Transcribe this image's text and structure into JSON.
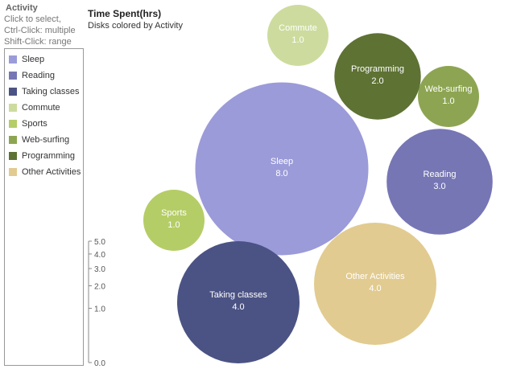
{
  "legend": {
    "title": "Activity",
    "hints": [
      "Click to select,",
      "Ctrl-Click: multiple",
      "Shift-Click: range"
    ]
  },
  "chart_data": {
    "type": "bubble",
    "title": "Time Spent(hrs)",
    "subtitle": "Disks colored by Activity",
    "size_scale": {
      "ticks": [
        0.0,
        1.0,
        2.0,
        3.0,
        4.0,
        5.0
      ],
      "range": [
        0,
        5
      ]
    },
    "series": [
      {
        "name": "Sleep",
        "value": 8.0,
        "label": "8.0",
        "color": "#9b9bd9"
      },
      {
        "name": "Reading",
        "value": 3.0,
        "label": "3.0",
        "color": "#7676b5"
      },
      {
        "name": "Taking classes",
        "value": 4.0,
        "label": "4.0",
        "color": "#4b5384"
      },
      {
        "name": "Commute",
        "value": 1.0,
        "label": "1.0",
        "color": "#cddc9e"
      },
      {
        "name": "Sports",
        "value": 1.0,
        "label": "1.0",
        "color": "#b5cd66"
      },
      {
        "name": "Web-surfing",
        "value": 1.0,
        "label": "1.0",
        "color": "#8da552"
      },
      {
        "name": "Programming",
        "value": 2.0,
        "label": "2.0",
        "color": "#5e7234"
      },
      {
        "name": "Other Activities",
        "value": 4.0,
        "label": "4.0",
        "color": "#e2cb90"
      }
    ]
  }
}
